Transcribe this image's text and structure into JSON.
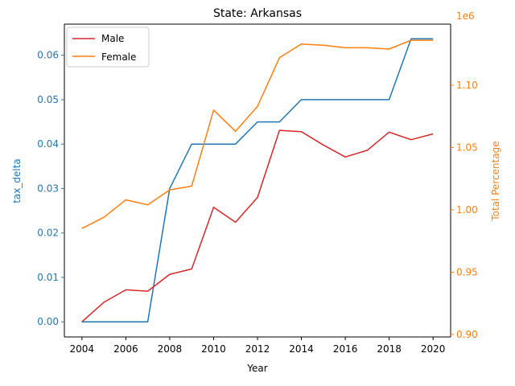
{
  "chart_data": {
    "type": "line",
    "title": "State: Arkansas",
    "xlabel": "Year",
    "ylabel_left": "tax_delta",
    "ylabel_right": "Total Percentage",
    "right_offset_label": "1e6",
    "x": [
      2004,
      2005,
      2006,
      2007,
      2008,
      2009,
      2010,
      2011,
      2012,
      2013,
      2014,
      2015,
      2016,
      2017,
      2018,
      2019,
      2020
    ],
    "xlim": [
      2003.2,
      2020.8
    ],
    "ylim_left": [
      -0.0034,
      0.067
    ],
    "ylim_right": [
      898000,
      1149000
    ],
    "x_ticks": [
      2004,
      2006,
      2008,
      2010,
      2012,
      2014,
      2016,
      2018,
      2020
    ],
    "y_ticks_left": [
      "0.00",
      "0.01",
      "0.02",
      "0.03",
      "0.04",
      "0.05",
      "0.06"
    ],
    "y_ticks_left_values": [
      0,
      0.01,
      0.02,
      0.03,
      0.04,
      0.05,
      0.06
    ],
    "y_ticks_right": [
      "0.90",
      "0.95",
      "1.00",
      "1.05",
      "1.10"
    ],
    "y_ticks_right_values": [
      900000,
      950000,
      1000000,
      1050000,
      1100000
    ],
    "tax_delta": {
      "color": "#1f77b4",
      "values": [
        0,
        0,
        0,
        0,
        0.03,
        0.04,
        0.04,
        0.04,
        0.045,
        0.045,
        0.05,
        0.05,
        0.05,
        0.05,
        0.05,
        0.0637,
        0.0637
      ]
    },
    "series": [
      {
        "name": "Male",
        "color": "#d62728",
        "values": [
          0,
          0.0044,
          0.0072,
          0.0069,
          0.0107,
          0.0119,
          0.0258,
          0.0224,
          0.028,
          0.0431,
          0.0428,
          0.0398,
          0.0371,
          0.0386,
          0.0427,
          0.041,
          0.0423
        ]
      },
      {
        "name": "Female",
        "color": "#ff7f0e",
        "values": [
          985000,
          994000,
          1008000,
          1004000,
          1016000,
          1019000,
          1080000,
          1063000,
          1083000,
          1122000,
          1133000,
          1132000,
          1130000,
          1130000,
          1129000,
          1136000,
          1136000
        ]
      }
    ],
    "legend_position": "top-left",
    "grid": false
  }
}
